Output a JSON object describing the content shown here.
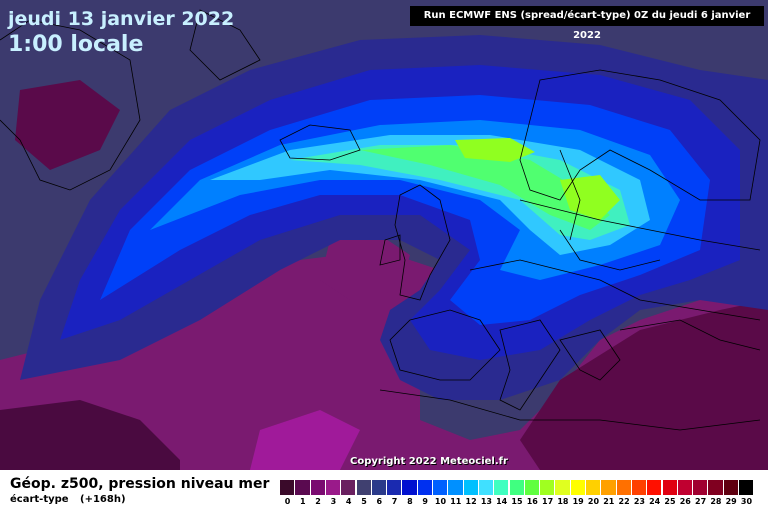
{
  "header": {
    "date": "jeudi 13 janvier 2022",
    "time": "1:00 locale",
    "run_info": "Run ECMWF ENS (spread/écart-type) 0Z du jeudi 6 janvier 2022"
  },
  "map": {
    "copyright": "Copyright 2022 Meteociel.fr"
  },
  "footer": {
    "title": "Géop. z500, pression niveau mer",
    "subtitle": "écart-type",
    "lead": "(+168h)"
  },
  "legend": {
    "labels": [
      "0",
      "1",
      "2",
      "3",
      "4",
      "5",
      "6",
      "7",
      "8",
      "9",
      "10",
      "11",
      "12",
      "13",
      "14",
      "15",
      "16",
      "17",
      "18",
      "19",
      "20",
      "21",
      "22",
      "23",
      "24",
      "25",
      "26",
      "27",
      "28",
      "29",
      "30"
    ],
    "colors": [
      "#3a0a2a",
      "#5a0a50",
      "#7a0a70",
      "#9a1a8a",
      "#6a2060",
      "#404070",
      "#2a3a8a",
      "#1a2ab0",
      "#0010d0",
      "#0030f0",
      "#0060ff",
      "#0090ff",
      "#00c0ff",
      "#40e0ff",
      "#40ffc0",
      "#40ff80",
      "#60ff40",
      "#a0ff20",
      "#e0ff20",
      "#ffff00",
      "#ffd000",
      "#ffa000",
      "#ff7000",
      "#ff4000",
      "#ff1000",
      "#e00010",
      "#c00030",
      "#a00030",
      "#800020",
      "#600010",
      "#000000"
    ]
  }
}
